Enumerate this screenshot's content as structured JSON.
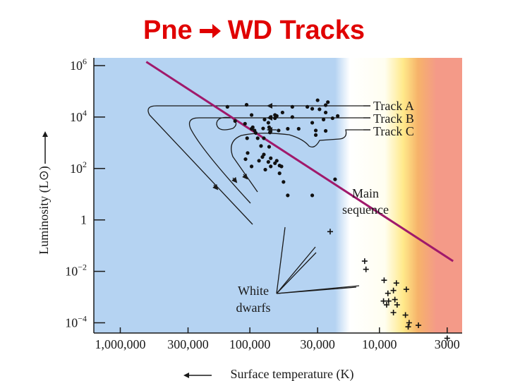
{
  "title": {
    "left": "Pne",
    "arrow_icon": "right-arrow-icon",
    "right": "WD Tracks"
  },
  "chart_data": {
    "type": "scatter",
    "xlabel": "Surface temperature (K)",
    "ylabel": "Luminosity (L⊙)",
    "x_scale": "log-reversed",
    "y_scale": "log",
    "xlim": [
      1600000,
      2300
    ],
    "ylim": [
      4e-05,
      2000000
    ],
    "x_ticks": [
      {
        "value": 1000000,
        "label": "1,000,000"
      },
      {
        "value": 300000,
        "label": "300,000"
      },
      {
        "value": 100000,
        "label": "100,000"
      },
      {
        "value": 30000,
        "label": "30,000"
      },
      {
        "value": 10000,
        "label": "10,000"
      },
      {
        "value": 3000,
        "label": "3000"
      }
    ],
    "y_ticks": [
      {
        "value": 1000000,
        "base": "10",
        "exp": "6"
      },
      {
        "value": 10000,
        "base": "10",
        "exp": "4"
      },
      {
        "value": 100,
        "base": "10",
        "exp": "2"
      },
      {
        "value": 1,
        "base": "1",
        "exp": ""
      },
      {
        "value": 0.01,
        "base": "10",
        "exp": "−2"
      },
      {
        "value": 0.0001,
        "base": "10",
        "exp": "−4"
      }
    ],
    "background_colors": {
      "hot": "#b5d3f2",
      "white": "#ffffff",
      "yellow": "#ffe98a",
      "orange": "#f6b36a",
      "red": "#f49a88"
    },
    "main_sequence": {
      "label_line1": "Main",
      "label_line2": "sequence",
      "color": "#a0196b",
      "x": [
        630000,
        2700
      ],
      "y": [
        1400000,
        0.025
      ]
    },
    "tracks": [
      {
        "name": "Track A",
        "label": "Track A"
      },
      {
        "name": "Track B",
        "label": "Track B"
      },
      {
        "name": "Track C",
        "label": "Track C"
      }
    ],
    "white_dwarfs_label_line1": "White",
    "white_dwarfs_label_line2": "dwarfs",
    "pn_nuclei": {
      "marker": "dot",
      "x": [
        149000,
        130000,
        109000,
        95000,
        90000,
        97000,
        79000,
        71000,
        72000,
        70000,
        77000,
        64000,
        62000,
        64000,
        69000,
        60000,
        56000,
        51000,
        47000,
        47000,
        42000,
        36000,
        33000,
        30000,
        27000,
        26000,
        26000,
        106000,
        97000,
        105000,
        92000,
        87000,
        82000,
        78000,
        71000,
        69000,
        104000,
        97000,
        108000,
        85000,
        76000,
        69000,
        64000,
        22000,
        33000,
        78000,
        80000,
        72000,
        62000,
        59000,
        59000,
        55000,
        51000,
        57000,
        29000,
        25000,
        33000,
        21000,
        23000,
        31000,
        26000,
        31000
      ],
      "y": [
        25000,
        7000,
        5500,
        4000,
        2400,
        12000,
        3600,
        4000,
        6000,
        2500,
        8000,
        9000,
        11000,
        12000,
        10000,
        3000,
        15000,
        3500,
        25000,
        10000,
        3500,
        25000,
        21000,
        45000,
        8000,
        29000,
        15000,
        30000,
        3500,
        1500,
        3000,
        1500,
        750,
        1500,
        700,
        250,
        400,
        120,
        230,
        200,
        90,
        120,
        160,
        38,
        9,
        350,
        280,
        180,
        200,
        130,
        65,
        30,
        9,
        120,
        20000,
        38000,
        6000,
        11000,
        9000,
        3000,
        2900,
        2000
      ]
    },
    "white_dwarf_points": {
      "marker": "plus",
      "x": [
        24000,
        13000,
        12700,
        9200,
        7400,
        7800,
        8600,
        6200,
        9300,
        8500,
        8800,
        7600,
        7300,
        7800,
        6300,
        5900,
        6000,
        5000,
        3000
      ],
      "y": [
        0.35,
        0.025,
        0.012,
        0.0045,
        0.0035,
        0.0018,
        0.0014,
        0.002,
        0.0007,
        0.0007,
        0.0005,
        0.0008,
        0.0005,
        0.00025,
        0.0002,
        0.0001,
        7e-05,
        8e-05,
        2.5e-05
      ]
    }
  }
}
